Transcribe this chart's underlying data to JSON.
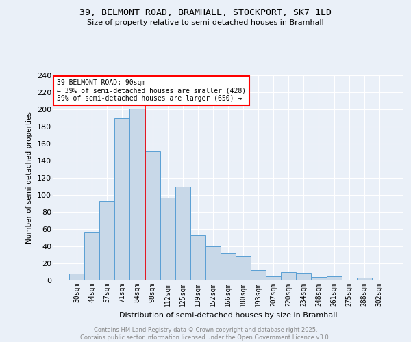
{
  "title1": "39, BELMONT ROAD, BRAMHALL, STOCKPORT, SK7 1LD",
  "title2": "Size of property relative to semi-detached houses in Bramhall",
  "xlabel": "Distribution of semi-detached houses by size in Bramhall",
  "ylabel": "Number of semi-detached properties",
  "footer1": "Contains HM Land Registry data © Crown copyright and database right 2025.",
  "footer2": "Contains public sector information licensed under the Open Government Licence v3.0.",
  "bar_labels": [
    "30sqm",
    "44sqm",
    "57sqm",
    "71sqm",
    "84sqm",
    "98sqm",
    "112sqm",
    "125sqm",
    "139sqm",
    "152sqm",
    "166sqm",
    "180sqm",
    "193sqm",
    "207sqm",
    "220sqm",
    "234sqm",
    "248sqm",
    "261sqm",
    "275sqm",
    "288sqm",
    "302sqm"
  ],
  "bar_values": [
    8,
    57,
    93,
    190,
    201,
    151,
    97,
    110,
    53,
    40,
    32,
    29,
    12,
    5,
    10,
    9,
    4,
    5,
    0,
    3,
    0
  ],
  "bar_color": "#c8d8e8",
  "bar_edge_color": "#5a9fd4",
  "background_color": "#eaf0f8",
  "grid_color": "#ffffff",
  "vline_x": 4.5,
  "vline_color": "red",
  "annotation_title": "39 BELMONT ROAD: 90sqm",
  "annotation_line1": "← 39% of semi-detached houses are smaller (428)",
  "annotation_line2": "59% of semi-detached houses are larger (650) →",
  "annotation_box_color": "white",
  "annotation_box_edge": "red",
  "ylim": [
    0,
    240
  ],
  "yticks": [
    0,
    20,
    40,
    60,
    80,
    100,
    120,
    140,
    160,
    180,
    200,
    220,
    240
  ]
}
